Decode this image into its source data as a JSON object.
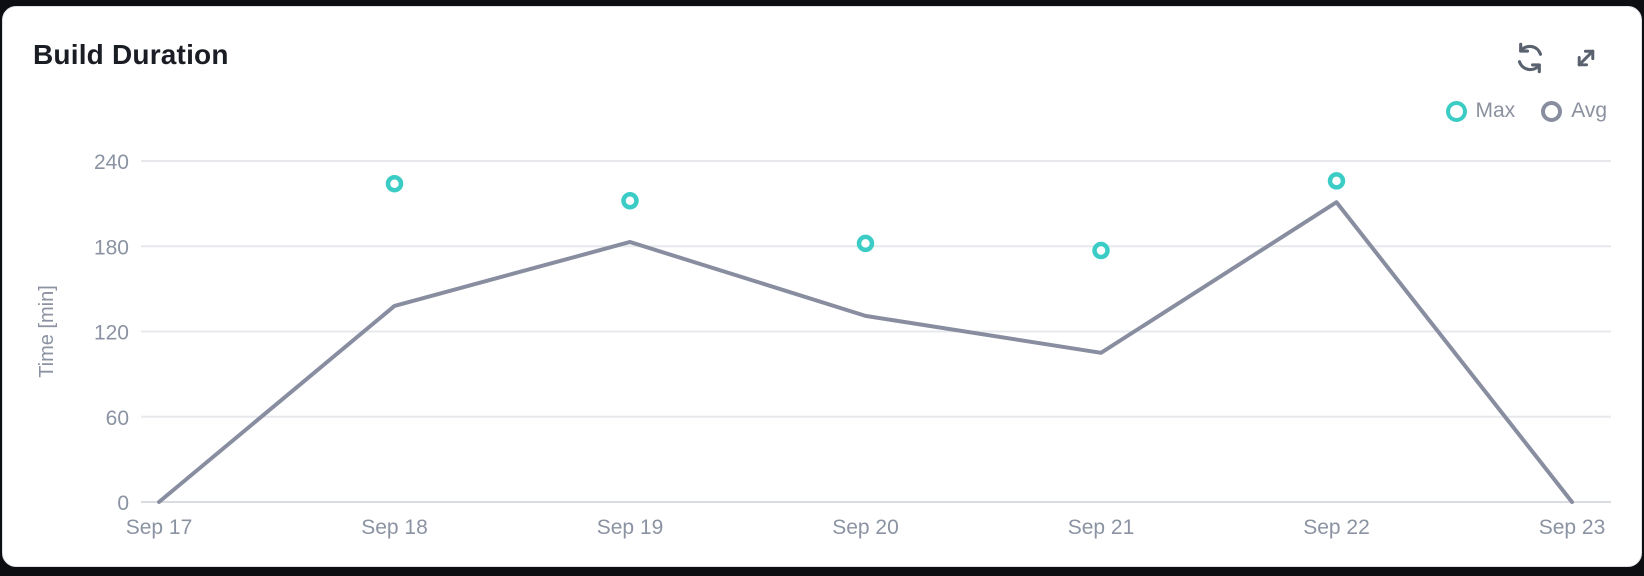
{
  "panel": {
    "title": "Build Duration",
    "icons": {
      "refresh": "circular-arrows",
      "expand": "diagonal-resize-arrows"
    }
  },
  "colors": {
    "max_accent": "#3bccc6",
    "avg_line": "#888ea0",
    "grid": "#e6e8ec",
    "zero_line": "#d9dce1",
    "axis_text": "#8b93a2",
    "icon": "#5a6270",
    "card_bg": "#ffffff",
    "page_bg": "#0d0e12"
  },
  "chart_data": {
    "type": "line",
    "title": "Build Duration",
    "xlabel": "",
    "ylabel": "Time [min]",
    "categories": [
      "Sep 17",
      "Sep 18",
      "Sep 19",
      "Sep 20",
      "Sep 21",
      "Sep 22",
      "Sep 23"
    ],
    "yticks": [
      0,
      60,
      120,
      180,
      240
    ],
    "ylim": [
      0,
      252
    ],
    "grid": "horizontal-only",
    "legend_position": "top-right",
    "series": [
      {
        "name": "Max",
        "type": "scatter",
        "color": "#3bccc6",
        "values": [
          null,
          224,
          212,
          182,
          177,
          226,
          null
        ]
      },
      {
        "name": "Avg",
        "type": "line",
        "color": "#888ea0",
        "values": [
          0,
          138,
          183,
          131,
          105,
          211,
          0
        ]
      }
    ]
  }
}
